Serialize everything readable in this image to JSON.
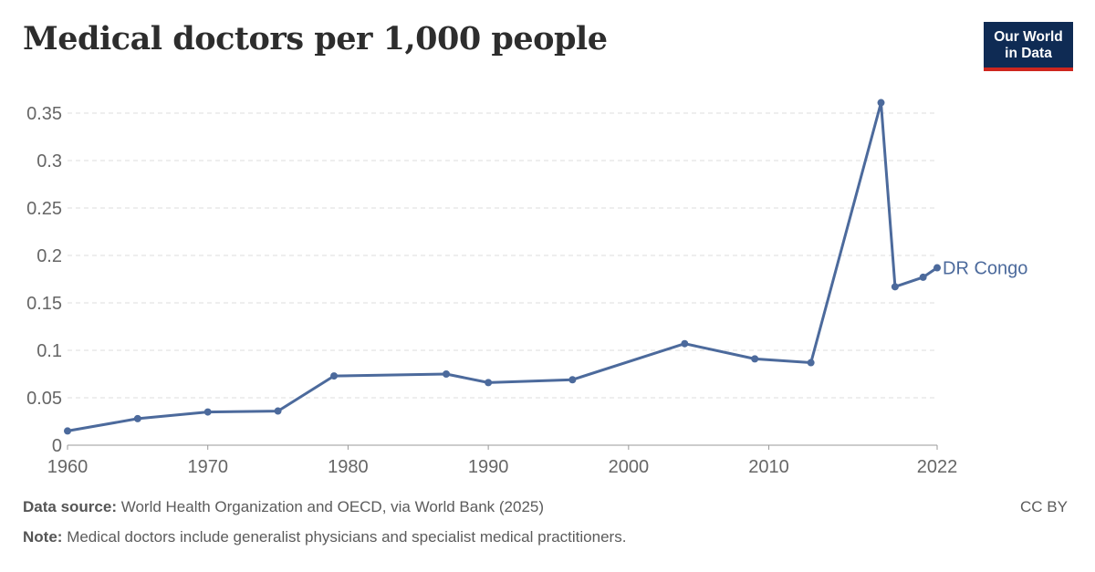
{
  "title": "Medical doctors per 1,000 people",
  "logo": {
    "line1": "Our World",
    "line2": "in Data",
    "bg": "#0f2b54",
    "accent": "#ce261e"
  },
  "footer": {
    "source_label": "Data source:",
    "source_text": "World Health Organization and OECD, via World Bank (2025)",
    "note_label": "Note:",
    "note_text": "Medical doctors include generalist physicians and specialist medical practitioners.",
    "license": "CC BY"
  },
  "chart_data": {
    "type": "line",
    "xlim": [
      1960,
      2022
    ],
    "ylim": [
      0,
      0.35
    ],
    "x_ticks": [
      {
        "value": 1960,
        "label": "1960"
      },
      {
        "value": 1970,
        "label": "1970"
      },
      {
        "value": 1980,
        "label": "1980"
      },
      {
        "value": 1990,
        "label": "1990"
      },
      {
        "value": 2000,
        "label": "2000"
      },
      {
        "value": 2010,
        "label": "2010"
      },
      {
        "value": 2022,
        "label": "2022"
      }
    ],
    "y_ticks": [
      {
        "value": 0,
        "label": "0"
      },
      {
        "value": 0.05,
        "label": "0.05"
      },
      {
        "value": 0.1,
        "label": "0.1"
      },
      {
        "value": 0.15,
        "label": "0.15"
      },
      {
        "value": 0.2,
        "label": "0.2"
      },
      {
        "value": 0.25,
        "label": "0.25"
      },
      {
        "value": 0.3,
        "label": "0.3"
      },
      {
        "value": 0.35,
        "label": "0.35"
      }
    ],
    "grid": true,
    "series": [
      {
        "name": "DR Congo",
        "color": "#4c6a9c",
        "x": [
          1960,
          1965,
          1970,
          1975,
          1979,
          1987,
          1990,
          1996,
          2004,
          2009,
          2013,
          2018,
          2019,
          2021,
          2022
        ],
        "y": [
          0.015,
          0.028,
          0.035,
          0.036,
          0.073,
          0.075,
          0.066,
          0.069,
          0.107,
          0.091,
          0.087,
          0.361,
          0.167,
          0.177,
          0.187
        ]
      }
    ]
  }
}
